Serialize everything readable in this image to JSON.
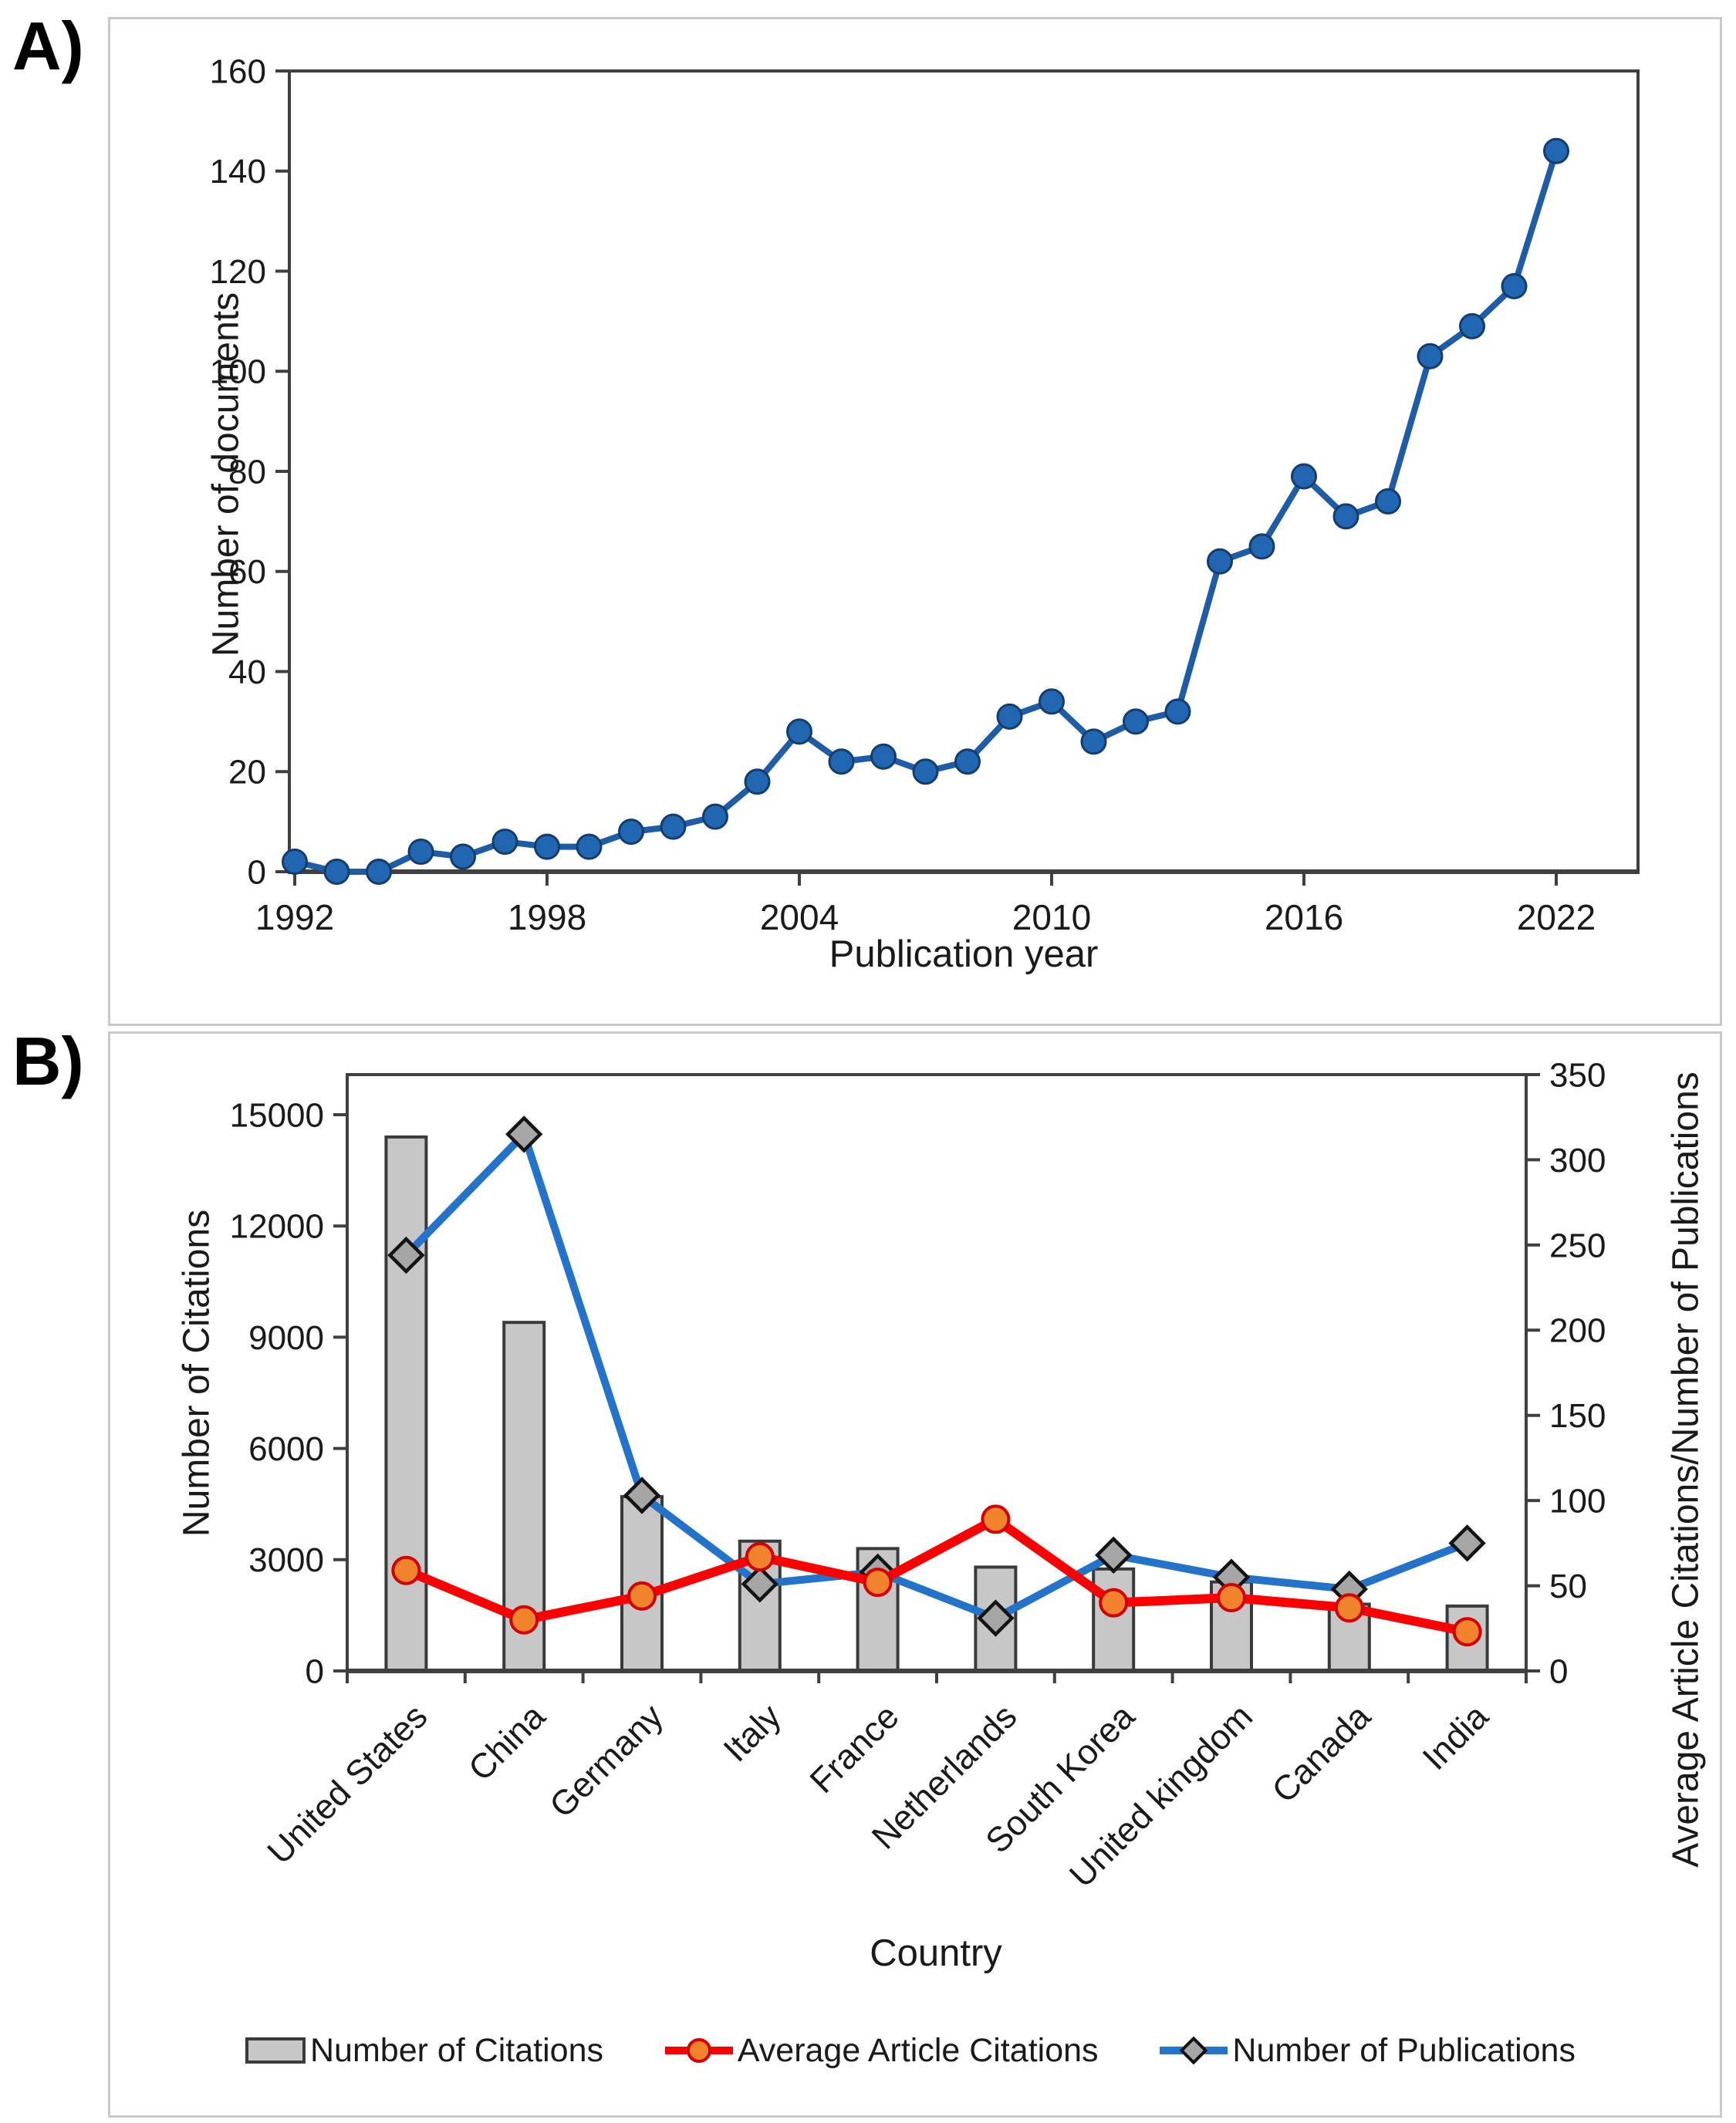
{
  "page": {
    "panel_a_label": "A)",
    "panel_b_label": "B)"
  },
  "colors": {
    "panel_border": "#c9c9c9",
    "axis": "#3f3f3f",
    "text": "#1a1a1a",
    "panel_a_line": "#1e5ca6",
    "panel_a_marker_fill": "#2166b1",
    "panel_a_marker_edge": "#143d6d",
    "bar_fill": "#c7c7c7",
    "bar_edge": "#3a3a3a",
    "publications_line": "#2273c9",
    "diamond_fill": "#a6a6a6",
    "diamond_edge": "#141414",
    "citations_line": "#fb0000",
    "circle_fill": "#f1832c",
    "circle_edge": "#d40000"
  },
  "chart_data": [
    {
      "id": "documents-per-year",
      "type": "line",
      "title": "",
      "xlabel": "Publication year",
      "ylabel": "Number of documents",
      "x": [
        1992,
        1993,
        1994,
        1995,
        1996,
        1997,
        1998,
        1999,
        2000,
        2001,
        2002,
        2003,
        2004,
        2005,
        2006,
        2007,
        2008,
        2009,
        2010,
        2011,
        2012,
        2013,
        2014,
        2015,
        2016,
        2017,
        2018,
        2019,
        2020,
        2021,
        2022
      ],
      "values": [
        2,
        0,
        0,
        4,
        3,
        6,
        5,
        5,
        8,
        9,
        11,
        18,
        28,
        22,
        23,
        20,
        22,
        31,
        34,
        26,
        30,
        32,
        62,
        65,
        79,
        71,
        74,
        103,
        109,
        117,
        144
      ],
      "ylim": [
        0,
        160
      ],
      "ytick_step": 20,
      "xticks": [
        1992,
        1998,
        2004,
        2010,
        2016,
        2022
      ],
      "grid": false,
      "legend_position": "none"
    },
    {
      "id": "country-metrics",
      "type": "bar",
      "title": "",
      "xlabel": "Country",
      "ylabel_left": "Number of Citations",
      "ylabel_right": "Average Article Citations/Number of Publications",
      "categories": [
        "United States",
        "China",
        "Germany",
        "Italy",
        "France",
        "Netherlands",
        "South Korea",
        "United kingdom",
        "Canada",
        "India"
      ],
      "series": [
        {
          "name": "Number of Citations",
          "type": "bar",
          "axis": "left",
          "values": [
            14400,
            9400,
            4700,
            3500,
            3300,
            2800,
            2750,
            2400,
            1800,
            1750
          ]
        },
        {
          "name": "Number of Publications",
          "type": "line",
          "axis": "right",
          "marker": "diamond",
          "values": [
            244,
            315,
            103,
            51,
            58,
            31,
            68,
            55,
            48,
            75
          ]
        },
        {
          "name": "Average Article Citations",
          "type": "line",
          "axis": "right",
          "marker": "circle",
          "values": [
            59,
            30,
            44,
            67,
            52,
            89,
            40,
            43,
            37,
            23
          ]
        }
      ],
      "ylim_left": [
        0,
        15000
      ],
      "ytick_left_step": 3000,
      "ylim_right": [
        0,
        350
      ],
      "ytick_right_step": 50,
      "grid": false,
      "legend_position": "bottom",
      "legend": [
        "Number of Citations",
        "Average Article Citations",
        "Number of Publications"
      ]
    }
  ]
}
